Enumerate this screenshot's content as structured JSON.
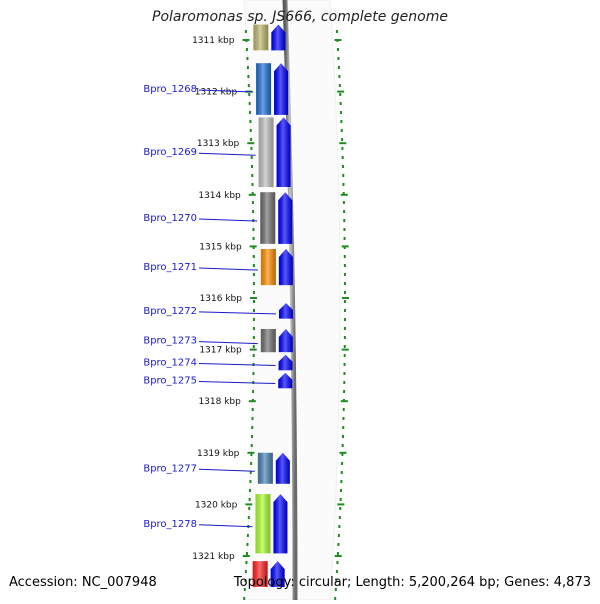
{
  "header": {
    "title": "Polaromonas sp. JS666, complete genome"
  },
  "footer": {
    "accession": "Accession: NC_007948",
    "topology": "Topology: circular; Length: 5,200,264 bp; Genes: 4,873"
  },
  "scale": {
    "unit": "kbp",
    "ticks": [
      {
        "kbp": 1311,
        "label": "1311 kbp"
      },
      {
        "kbp": 1312,
        "label": "1312 kbp"
      },
      {
        "kbp": 1313,
        "label": "1313 kbp"
      },
      {
        "kbp": 1314,
        "label": "1314 kbp"
      },
      {
        "kbp": 1315,
        "label": "1315 kbp"
      },
      {
        "kbp": 1316,
        "label": "1316 kbp"
      },
      {
        "kbp": 1317,
        "label": "1317 kbp"
      },
      {
        "kbp": 1318,
        "label": "1318 kbp"
      },
      {
        "kbp": 1319,
        "label": "1319 kbp"
      },
      {
        "kbp": 1320,
        "label": "1320 kbp"
      },
      {
        "kbp": 1321,
        "label": "1321 kbp"
      }
    ]
  },
  "genes": [
    {
      "label": "",
      "start_kbp": 1310.7,
      "end_kbp": 1311.2,
      "color": "#bdb76b"
    },
    {
      "label": "Bpro_1268",
      "start_kbp": 1311.45,
      "end_kbp": 1312.45,
      "color": "#1f6fd6"
    },
    {
      "label": "Bpro_1269",
      "start_kbp": 1312.5,
      "end_kbp": 1313.85,
      "color": "#c0c0c0"
    },
    {
      "label": "Bpro_1270",
      "start_kbp": 1313.95,
      "end_kbp": 1314.95,
      "color": "#707070"
    },
    {
      "label": "Bpro_1271",
      "start_kbp": 1315.05,
      "end_kbp": 1315.75,
      "color": "#ff8c00"
    },
    {
      "label": "Bpro_1272",
      "start_kbp": 1316.1,
      "end_kbp": 1316.4,
      "color": ""
    },
    {
      "label": "Bpro_1273",
      "start_kbp": 1316.6,
      "end_kbp": 1317.05,
      "color": "#707070"
    },
    {
      "label": "Bpro_1274",
      "start_kbp": 1317.1,
      "end_kbp": 1317.4,
      "color": ""
    },
    {
      "label": "Bpro_1275",
      "start_kbp": 1317.45,
      "end_kbp": 1317.75,
      "color": ""
    },
    {
      "label": "Bpro_1277",
      "start_kbp": 1319.0,
      "end_kbp": 1319.6,
      "color": "#4682b4"
    },
    {
      "label": "Bpro_1278",
      "start_kbp": 1319.8,
      "end_kbp": 1320.95,
      "color": "#adff2f"
    },
    {
      "label": "",
      "start_kbp": 1321.1,
      "end_kbp": 1321.6,
      "color": "#ff2020"
    }
  ],
  "colors": {
    "strand_arrow": "#0000ff",
    "tick_marks": "#1e8c1e",
    "backbone": "#8a8a8a",
    "gene_label": "#1a1acc"
  }
}
